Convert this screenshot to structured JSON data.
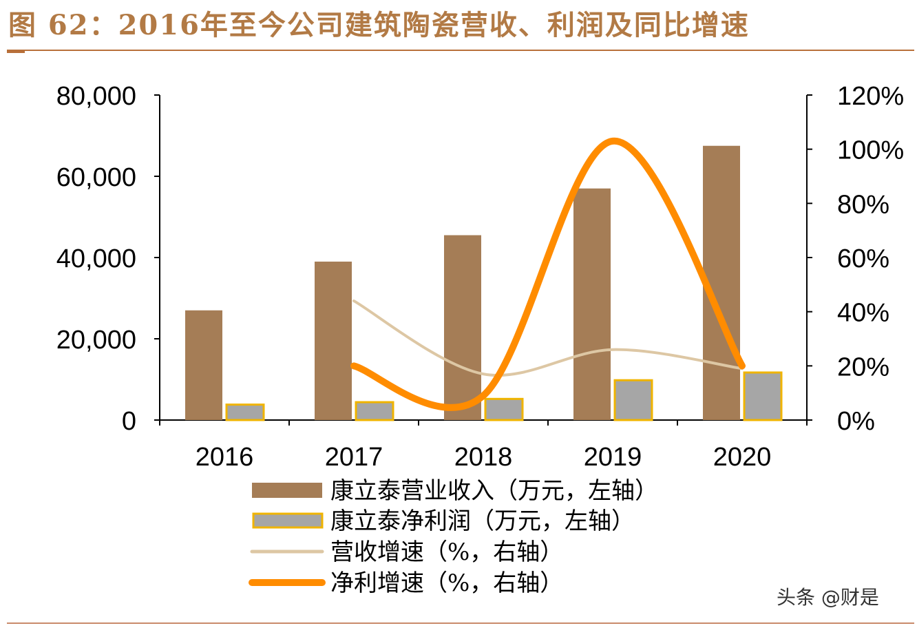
{
  "header": {
    "title": "图 62：2016年至今公司建筑陶瓷营收、利润及同比增速"
  },
  "footer": {
    "watermark": "头条 @财是"
  },
  "colors": {
    "title": "#b27a45",
    "revenue_bar": "#a57d56",
    "profit_bar": "#a6a6a6",
    "profit_bar_edge": "#f0b400",
    "revenue_growth_line": "#ddc7a4",
    "profit_growth_line": "#ff8c00",
    "axis": "#000000"
  },
  "chart_data": {
    "type": "bar",
    "categories": [
      "2016",
      "2017",
      "2018",
      "2019",
      "2020"
    ],
    "y_left": {
      "ticks": [
        "0",
        "20,000",
        "40,000",
        "60,000",
        "80,000"
      ],
      "ylim": [
        0,
        80000
      ]
    },
    "y_right": {
      "ticks": [
        "0%",
        "20%",
        "40%",
        "60%",
        "80%",
        "100%",
        "120%"
      ],
      "ylim": [
        0,
        120
      ]
    },
    "series": [
      {
        "name": "康立泰营业收入（万元，左轴）",
        "kind": "bar",
        "axis": "left",
        "values": [
          27000,
          39000,
          45500,
          57000,
          67500
        ]
      },
      {
        "name": "康立泰净利润（万元，左轴）",
        "kind": "bar",
        "axis": "left",
        "values": [
          3800,
          4400,
          5200,
          9800,
          11700
        ]
      },
      {
        "name": "营收增速（%，右轴）",
        "kind": "line",
        "axis": "right",
        "values": [
          null,
          44,
          17,
          26,
          19
        ]
      },
      {
        "name": "净利增速（%，右轴）",
        "kind": "line",
        "axis": "right",
        "values": [
          null,
          20,
          9,
          103,
          20
        ]
      }
    ],
    "legend": "bottom-center",
    "grid": false
  }
}
